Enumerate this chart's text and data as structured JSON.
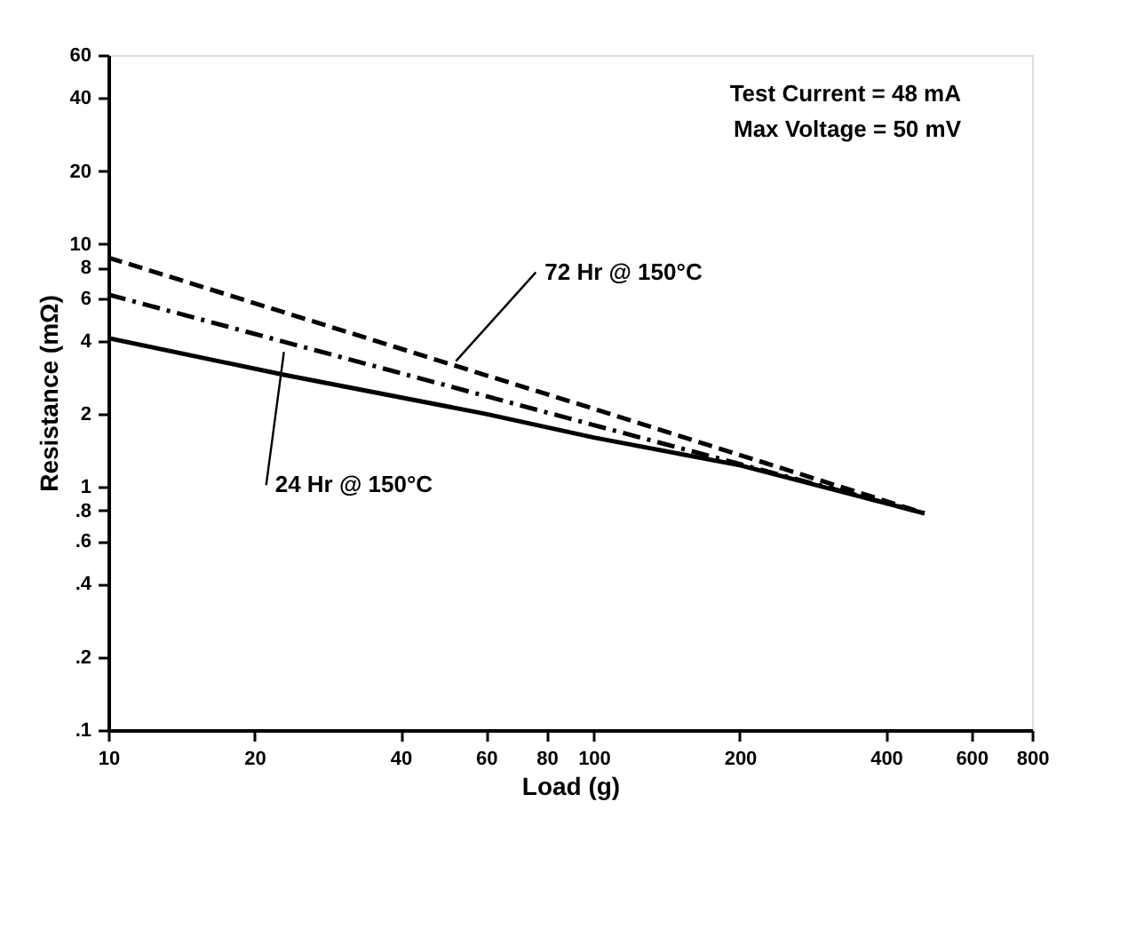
{
  "chart_data": {
    "type": "line",
    "xlabel": "Load (g)",
    "ylabel": "Resistance (mΩ)",
    "log": "xy",
    "xlim": [
      10,
      800
    ],
    "ylim": [
      0.1,
      60
    ],
    "xticks": [
      10,
      20,
      40,
      60,
      80,
      100,
      200,
      400,
      600,
      800
    ],
    "yticks": [
      {
        "value": 0.1,
        "label": ".1"
      },
      {
        "value": 0.2,
        "label": ".2"
      },
      {
        "value": 0.4,
        "label": ".4"
      },
      {
        "value": 0.6,
        "label": ".6"
      },
      {
        "value": 0.8,
        "label": ".8"
      },
      1,
      2,
      4,
      6,
      8,
      10,
      20,
      40,
      60
    ],
    "grid": false,
    "series": [
      {
        "color": "#000000",
        "line_style": "solid",
        "x": [
          10,
          23,
          60,
          100,
          200,
          480
        ],
        "values": [
          4.1,
          2.9,
          2.0,
          1.6,
          1.23,
          0.78
        ]
      },
      {
        "color": "#000000",
        "line_style": "dashed",
        "x": [
          10,
          100,
          480
        ],
        "values": [
          8.8,
          2.1,
          0.78
        ]
      },
      {
        "color": "#000000",
        "line_style": "dashdot",
        "x": [
          10,
          100,
          480
        ],
        "values": [
          6.2,
          1.8,
          0.78
        ]
      }
    ],
    "annotations": [
      "Test Current = 48 mA",
      "Max Voltage = 50 mV",
      {
        "text": "72 Hr @ 150°C",
        "x": 52,
        "y": 3.3
      },
      {
        "text": "24 Hr @ 150°C",
        "x": 23,
        "y": 3.6
      }
    ]
  }
}
